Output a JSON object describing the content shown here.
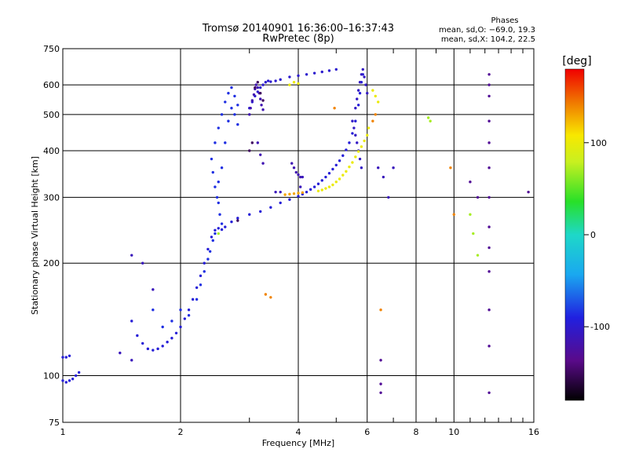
{
  "chart_data": {
    "type": "scatter",
    "title": "Tromsø 20140901 16:36:00–16:37:43",
    "subtitle": "RwPretec (8p)",
    "xlabel": "Frequency [MHz]",
    "ylabel": "Stationary phase Virtual Height [km]",
    "x_scale": "log",
    "y_scale": "log",
    "xlim": [
      1,
      16
    ],
    "ylim": [
      75,
      750
    ],
    "x_ticks": [
      1,
      2,
      4,
      6,
      8,
      10,
      16
    ],
    "x_tick_labels": [
      "1",
      "2",
      "4",
      "6",
      "8",
      "10",
      "16"
    ],
    "x_grid_lines": [
      2,
      4,
      6,
      8,
      10
    ],
    "x_minor_ticks": [
      3,
      5,
      7,
      9,
      11,
      12,
      13,
      14,
      15
    ],
    "y_ticks": [
      75,
      100,
      200,
      300,
      400,
      500,
      600,
      750
    ],
    "y_tick_labels": [
      "75",
      "100",
      "200",
      "300",
      "400",
      "500",
      "600",
      "750"
    ],
    "y_grid_lines": [
      100,
      200,
      300,
      400,
      500,
      600
    ],
    "grid": true,
    "colorbar": {
      "label": "[deg]",
      "min": -180,
      "max": 180,
      "ticks": [
        100,
        0,
        -100
      ],
      "tick_labels": [
        "100",
        "0",
        "-100"
      ]
    },
    "stats": {
      "heading": "Phases",
      "line_o": "mean, sd,O: −69.0, 19.3",
      "line_x": "mean, sd,X: 104.2, 22.5"
    },
    "colors": {
      "cyan_trace": "#33c3e8",
      "blue_trace": "#1f58e6",
      "dark_blue": "#2a1ca8",
      "yellow": "#f4d400",
      "orange": "#f07800",
      "purple": "#6a1aa0"
    },
    "series": [
      {
        "phase": -95,
        "points": [
          [
            1.0,
            97
          ],
          [
            1.02,
            96
          ],
          [
            1.04,
            97
          ],
          [
            1.06,
            98
          ],
          [
            1.08,
            100
          ],
          [
            1.1,
            102
          ],
          [
            1.0,
            112
          ],
          [
            1.02,
            112
          ],
          [
            1.04,
            113
          ]
        ]
      },
      {
        "phase": -95,
        "points": [
          [
            1.5,
            140
          ],
          [
            1.55,
            128
          ],
          [
            1.6,
            122
          ],
          [
            1.65,
            118
          ],
          [
            1.7,
            117
          ],
          [
            1.75,
            118
          ],
          [
            1.8,
            120
          ],
          [
            1.85,
            123
          ],
          [
            1.9,
            126
          ],
          [
            1.95,
            130
          ],
          [
            2.0,
            135
          ],
          [
            2.05,
            142
          ],
          [
            2.1,
            150
          ],
          [
            2.15,
            160
          ],
          [
            2.2,
            172
          ],
          [
            2.25,
            185
          ],
          [
            2.3,
            200
          ],
          [
            2.35,
            218
          ],
          [
            2.4,
            235
          ],
          [
            2.45,
            245
          ],
          [
            2.5,
            248
          ],
          [
            2.55,
            246
          ],
          [
            2.6,
            250
          ],
          [
            2.7,
            258
          ],
          [
            2.8,
            264
          ],
          [
            3.0,
            270
          ],
          [
            3.2,
            275
          ],
          [
            3.4,
            282
          ],
          [
            3.6,
            290
          ],
          [
            3.8,
            296
          ],
          [
            4.0,
            302
          ],
          [
            4.1,
            306
          ],
          [
            4.2,
            310
          ],
          [
            4.3,
            315
          ],
          [
            4.4,
            320
          ],
          [
            4.5,
            326
          ],
          [
            4.6,
            333
          ],
          [
            4.7,
            340
          ],
          [
            4.8,
            348
          ],
          [
            4.9,
            357
          ],
          [
            5.0,
            366
          ],
          [
            5.1,
            376
          ],
          [
            5.2,
            388
          ],
          [
            5.3,
            402
          ],
          [
            5.4,
            420
          ],
          [
            5.5,
            445
          ],
          [
            5.6,
            480
          ],
          [
            5.7,
            530
          ],
          [
            5.75,
            570
          ],
          [
            5.8,
            610
          ],
          [
            5.85,
            640
          ]
        ]
      },
      {
        "phase": -85,
        "points": [
          [
            2.4,
            380
          ],
          [
            2.42,
            350
          ],
          [
            2.45,
            320
          ],
          [
            2.48,
            300
          ],
          [
            2.5,
            290
          ],
          [
            2.52,
            270
          ],
          [
            2.55,
            255
          ],
          [
            2.45,
            420
          ],
          [
            2.5,
            460
          ],
          [
            2.55,
            500
          ],
          [
            2.6,
            540
          ],
          [
            2.65,
            570
          ],
          [
            2.7,
            590
          ],
          [
            2.75,
            560
          ],
          [
            2.8,
            530
          ],
          [
            2.5,
            330
          ],
          [
            2.55,
            360
          ],
          [
            2.6,
            420
          ],
          [
            2.65,
            480
          ],
          [
            2.7,
            520
          ],
          [
            2.75,
            500
          ],
          [
            2.8,
            470
          ],
          [
            2.1,
            145
          ],
          [
            2.2,
            160
          ],
          [
            2.25,
            175
          ],
          [
            2.3,
            190
          ],
          [
            2.35,
            205
          ],
          [
            2.38,
            215
          ],
          [
            2.42,
            230
          ],
          [
            2.45,
            240
          ],
          [
            1.7,
            150
          ],
          [
            1.8,
            135
          ],
          [
            1.9,
            140
          ],
          [
            2.0,
            150
          ]
        ]
      },
      {
        "phase": -100,
        "points": [
          [
            3.0,
            520
          ],
          [
            3.05,
            540
          ],
          [
            3.1,
            560
          ],
          [
            3.15,
            575
          ],
          [
            3.2,
            590
          ],
          [
            3.25,
            600
          ],
          [
            3.3,
            610
          ],
          [
            3.35,
            615
          ],
          [
            3.4,
            612
          ],
          [
            3.5,
            615
          ],
          [
            3.6,
            620
          ],
          [
            3.8,
            630
          ],
          [
            4.0,
            635
          ],
          [
            4.2,
            640
          ],
          [
            4.4,
            645
          ],
          [
            4.6,
            650
          ],
          [
            4.8,
            655
          ],
          [
            5.0,
            660
          ]
        ]
      },
      {
        "phase": -115,
        "points": [
          [
            3.0,
            500
          ],
          [
            3.02,
            520
          ],
          [
            3.05,
            545
          ],
          [
            3.08,
            565
          ],
          [
            3.1,
            585
          ],
          [
            3.12,
            600
          ],
          [
            3.15,
            590
          ],
          [
            3.18,
            570
          ],
          [
            3.2,
            550
          ],
          [
            3.22,
            530
          ],
          [
            3.25,
            515
          ],
          [
            3.15,
            420
          ],
          [
            3.2,
            390
          ],
          [
            3.25,
            370
          ],
          [
            3.85,
            370
          ],
          [
            3.9,
            360
          ],
          [
            3.95,
            350
          ],
          [
            4.0,
            345
          ],
          [
            4.05,
            340
          ]
        ]
      },
      {
        "phase": -105,
        "points": [
          [
            5.6,
            520
          ],
          [
            5.65,
            550
          ],
          [
            5.7,
            580
          ],
          [
            5.75,
            610
          ],
          [
            5.8,
            640
          ],
          [
            5.85,
            660
          ],
          [
            5.9,
            630
          ],
          [
            5.95,
            600
          ],
          [
            6.0,
            570
          ],
          [
            5.5,
            480
          ],
          [
            5.55,
            460
          ],
          [
            5.6,
            440
          ],
          [
            5.65,
            420
          ],
          [
            5.7,
            400
          ],
          [
            5.75,
            380
          ],
          [
            5.8,
            360
          ]
        ]
      },
      {
        "phase": 130,
        "points": [
          [
            3.7,
            305
          ],
          [
            3.8,
            306
          ],
          [
            3.9,
            307
          ],
          [
            4.0,
            308
          ],
          [
            4.1,
            309
          ]
        ]
      },
      {
        "phase": 100,
        "points": [
          [
            4.5,
            312
          ],
          [
            4.6,
            314
          ],
          [
            4.7,
            317
          ],
          [
            4.8,
            320
          ],
          [
            4.9,
            324
          ],
          [
            5.0,
            330
          ],
          [
            5.1,
            336
          ],
          [
            5.2,
            344
          ],
          [
            5.3,
            352
          ],
          [
            5.4,
            362
          ],
          [
            5.5,
            372
          ],
          [
            5.6,
            385
          ],
          [
            5.7,
            398
          ],
          [
            5.8,
            410
          ],
          [
            5.9,
            425
          ],
          [
            6.0,
            440
          ],
          [
            6.05,
            460
          ],
          [
            3.8,
            600
          ],
          [
            3.9,
            610
          ],
          [
            4.0,
            605
          ],
          [
            6.2,
            580
          ],
          [
            6.3,
            560
          ],
          [
            6.4,
            540
          ]
        ]
      },
      {
        "phase": -150,
        "points": [
          [
            2.8,
            260
          ],
          [
            3.0,
            400
          ],
          [
            3.05,
            420
          ],
          [
            3.1,
            590
          ],
          [
            3.15,
            610
          ],
          [
            3.2,
            570
          ],
          [
            3.25,
            545
          ]
        ]
      },
      {
        "phase": -130,
        "points": [
          [
            12.3,
            640
          ],
          [
            12.3,
            600
          ],
          [
            12.3,
            560
          ],
          [
            12.3,
            480
          ],
          [
            12.3,
            420
          ],
          [
            12.3,
            360
          ],
          [
            12.3,
            300
          ],
          [
            12.3,
            250
          ],
          [
            12.3,
            220
          ],
          [
            12.3,
            190
          ],
          [
            12.3,
            150
          ],
          [
            12.3,
            120
          ],
          [
            12.3,
            90
          ],
          [
            6.5,
            95
          ],
          [
            6.5,
            90
          ],
          [
            6.5,
            110
          ],
          [
            11.0,
            330
          ],
          [
            11.5,
            300
          ],
          [
            15.5,
            310
          ]
        ]
      },
      {
        "phase": 140,
        "points": [
          [
            3.3,
            165
          ],
          [
            3.4,
            162
          ],
          [
            6.5,
            150
          ],
          [
            9.8,
            360
          ],
          [
            10.0,
            270
          ],
          [
            6.2,
            480
          ],
          [
            6.3,
            500
          ],
          [
            4.95,
            520
          ]
        ]
      },
      {
        "phase": 70,
        "points": [
          [
            8.6,
            490
          ],
          [
            8.7,
            480
          ],
          [
            11.0,
            270
          ],
          [
            11.2,
            240
          ],
          [
            11.5,
            210
          ],
          [
            2.5,
            240
          ]
        ]
      },
      {
        "phase": -110,
        "points": [
          [
            3.5,
            310
          ],
          [
            3.6,
            310
          ],
          [
            4.05,
            320
          ],
          [
            4.1,
            340
          ],
          [
            6.4,
            360
          ],
          [
            6.6,
            340
          ],
          [
            6.8,
            300
          ],
          [
            7.0,
            360
          ],
          [
            1.5,
            210
          ],
          [
            1.6,
            200
          ],
          [
            1.7,
            170
          ],
          [
            1.4,
            115
          ],
          [
            1.5,
            110
          ]
        ]
      }
    ]
  }
}
